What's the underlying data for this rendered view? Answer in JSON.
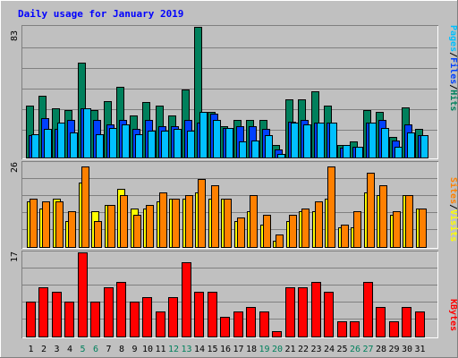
{
  "chart_data": [
    {
      "type": "bar",
      "title": "Daily usage for January 2019",
      "panel": "hits-files-pages",
      "ymax_label": "83",
      "ymax": 83,
      "legend": [
        "Pages",
        "/",
        "Files",
        "/",
        "Hits"
      ],
      "categories": [
        "1",
        "2",
        "3",
        "4",
        "5",
        "6",
        "7",
        "8",
        "9",
        "10",
        "11",
        "12",
        "13",
        "14",
        "15",
        "16",
        "17",
        "18",
        "19",
        "20",
        "21",
        "22",
        "23",
        "24",
        "25",
        "26",
        "27",
        "28",
        "29",
        "30",
        "31"
      ],
      "weekend_days": [
        "5",
        "6",
        "12",
        "13",
        "19",
        "20",
        "26",
        "27"
      ],
      "series": [
        {
          "name": "Hits",
          "values": [
            33,
            39,
            31,
            30,
            60,
            30,
            36,
            45,
            27,
            35,
            33,
            27,
            43,
            83,
            29,
            20,
            24,
            24,
            24,
            8,
            37,
            37,
            42,
            33,
            8,
            10,
            30,
            29,
            13,
            32,
            18
          ]
        },
        {
          "name": "Files",
          "values": [
            14,
            25,
            18,
            24,
            31,
            24,
            21,
            24,
            18,
            24,
            20,
            20,
            24,
            22,
            28,
            19,
            20,
            20,
            18,
            5,
            23,
            24,
            22,
            22,
            6,
            7,
            22,
            24,
            11,
            21,
            14
          ]
        },
        {
          "name": "Pages",
          "values": [
            15,
            18,
            22,
            16,
            31,
            15,
            19,
            21,
            15,
            17,
            17,
            18,
            17,
            29,
            24,
            19,
            10,
            11,
            14,
            2,
            22,
            21,
            22,
            22,
            8,
            7,
            22,
            19,
            7,
            16,
            14
          ]
        }
      ]
    },
    {
      "type": "bar",
      "panel": "visits-sites",
      "ymax_label": "26",
      "ymax": 26,
      "legend": [
        "Sites",
        "/",
        "Visits"
      ],
      "categories": [
        "1",
        "2",
        "3",
        "4",
        "5",
        "6",
        "7",
        "8",
        "9",
        "10",
        "11",
        "12",
        "13",
        "14",
        "15",
        "16",
        "17",
        "18",
        "19",
        "20",
        "21",
        "22",
        "23",
        "24",
        "25",
        "26",
        "27",
        "28",
        "29",
        "30",
        "31"
      ],
      "series": [
        {
          "name": "Visits",
          "values": [
            14,
            12,
            15,
            8,
            20,
            11,
            13,
            18,
            12,
            12,
            14,
            15,
            15,
            17,
            15,
            15,
            8,
            11,
            7,
            2,
            8,
            11,
            11,
            15,
            6,
            6,
            17,
            16,
            10,
            16,
            12
          ]
        },
        {
          "name": "Sites",
          "values": [
            15,
            14,
            14,
            11,
            25,
            8,
            13,
            16,
            10,
            13,
            17,
            15,
            16,
            21,
            19,
            15,
            9,
            16,
            10,
            4,
            10,
            12,
            14,
            25,
            7,
            11,
            23,
            19,
            11,
            16,
            12
          ]
        }
      ]
    },
    {
      "type": "bar",
      "panel": "kbytes",
      "ymax_label": "17",
      "ymax": 17,
      "legend": [
        "KBytes"
      ],
      "categories": [
        "1",
        "2",
        "3",
        "4",
        "5",
        "6",
        "7",
        "8",
        "9",
        "10",
        "11",
        "12",
        "13",
        "14",
        "15",
        "16",
        "17",
        "18",
        "19",
        "20",
        "21",
        "22",
        "23",
        "24",
        "25",
        "26",
        "27",
        "28",
        "29",
        "30",
        "31"
      ],
      "series": [
        {
          "name": "KBytes",
          "values": [
            7,
            10,
            9,
            7,
            17,
            7,
            10,
            11,
            7,
            8,
            5,
            8,
            15,
            9,
            9,
            4,
            5,
            6,
            5,
            1,
            10,
            10,
            11,
            9,
            3,
            3,
            11,
            6,
            3,
            6,
            5
          ]
        }
      ]
    }
  ],
  "colors": {
    "background": "#c0c0c0",
    "frame_light": "#ffffff",
    "frame_dark": "#808080",
    "title": "#0000ff",
    "weekday_label": "#000000",
    "weekend_label": "#00805c",
    "Hits": "#00805c",
    "Files": "#0040ff",
    "Pages": "#00c0ff",
    "Visits": "#ffff00",
    "Sites": "#ff8000",
    "KBytes": "#ff0000",
    "legend_sep": "#000000"
  }
}
